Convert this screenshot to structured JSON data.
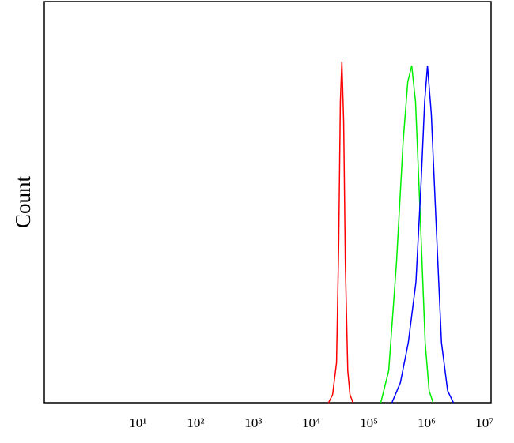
{
  "chart_data": {
    "type": "line",
    "y_label": "Count",
    "xscale": "log",
    "xlim": [
      0.24,
      13000000
    ],
    "ylim": [
      0,
      100
    ],
    "xticks": [
      {
        "value": 10,
        "label": "10¹"
      },
      {
        "value": 100,
        "label": "10²"
      },
      {
        "value": 1000,
        "label": "10³"
      },
      {
        "value": 10000,
        "label": "10⁴"
      },
      {
        "value": 100000,
        "label": "10⁵"
      },
      {
        "value": 1000000,
        "label": "10⁶"
      },
      {
        "value": 10000000,
        "label": "10⁷"
      }
    ],
    "series": [
      {
        "color": "#ff0000",
        "x": [
          20000,
          23500,
          27500,
          30000,
          32000,
          34000,
          36500,
          39000,
          43000,
          47000,
          53000
        ],
        "values": [
          0,
          2,
          10,
          40,
          75,
          85,
          70,
          35,
          8,
          2,
          0
        ]
      },
      {
        "color": "#00ee00",
        "x": [
          160000,
          220000,
          300000,
          390000,
          470000,
          550000,
          640000,
          780000,
          940000,
          1100000,
          1290000
        ],
        "values": [
          0,
          8,
          35,
          65,
          80,
          84,
          75,
          45,
          15,
          3,
          0
        ]
      },
      {
        "color": "#0000ff",
        "x": [
          250000,
          350000,
          480000,
          650000,
          800000,
          920000,
          1030000,
          1200000,
          1450000,
          1800000,
          2300000,
          2900000
        ],
        "values": [
          0,
          5,
          15,
          30,
          55,
          75,
          84,
          72,
          45,
          15,
          3,
          0
        ]
      }
    ]
  }
}
